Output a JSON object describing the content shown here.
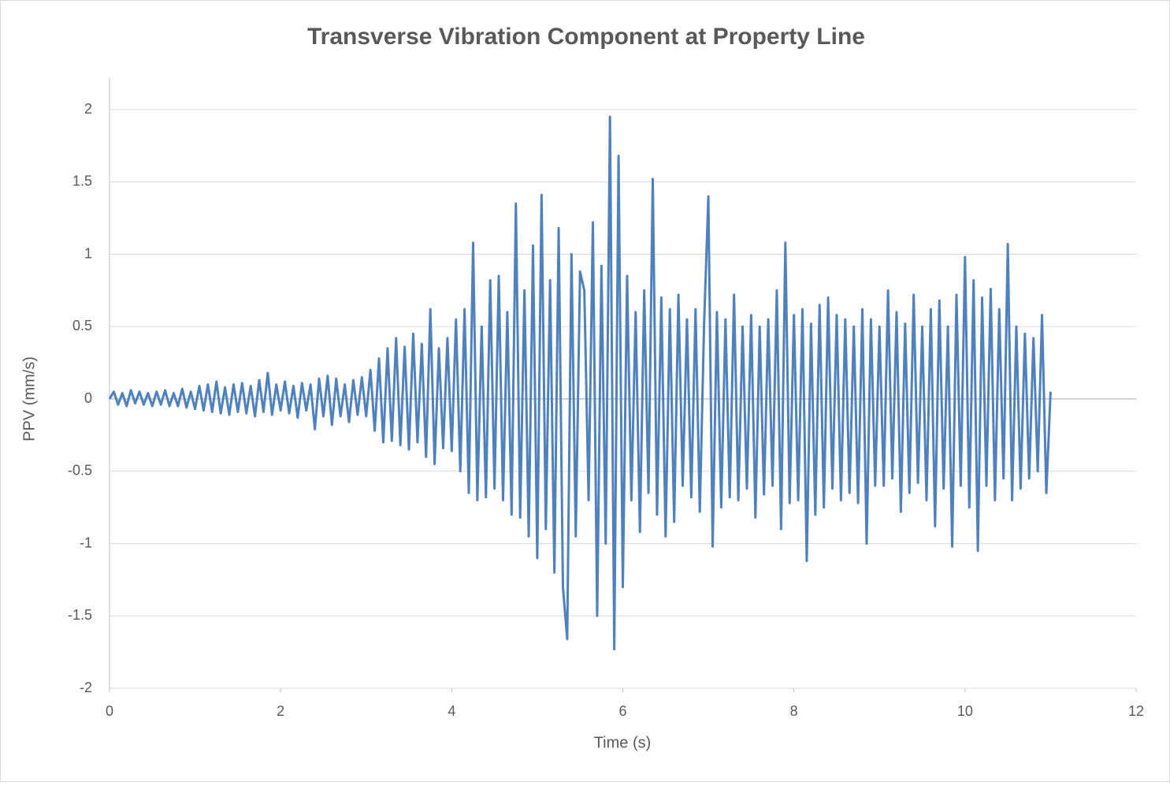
{
  "chart_data": {
    "type": "line",
    "title": "Transverse Vibration Component at Property Line",
    "x_label": "Time (s)",
    "y_label": "PPV (mm/s)",
    "color": "#4f81bd",
    "grid": true,
    "xlim": [
      0,
      12
    ],
    "xticks": [
      0,
      2,
      4,
      6,
      8,
      10,
      12
    ],
    "ylim": [
      -2,
      2
    ],
    "yticks": [
      -2,
      -1.5,
      -1,
      -0.5,
      0,
      0.5,
      1,
      1.5,
      2
    ],
    "x": [
      0,
      0.05,
      0.1,
      0.15,
      0.2,
      0.25,
      0.3,
      0.35,
      0.4,
      0.45,
      0.5,
      0.55,
      0.6,
      0.65,
      0.7,
      0.75,
      0.8,
      0.85,
      0.9,
      0.95,
      1,
      1.05,
      1.1,
      1.15,
      1.2,
      1.25,
      1.3,
      1.35,
      1.4,
      1.45,
      1.5,
      1.55,
      1.6,
      1.65,
      1.7,
      1.75,
      1.8,
      1.85,
      1.9,
      1.95,
      2,
      2.05,
      2.1,
      2.15,
      2.2,
      2.25,
      2.3,
      2.35,
      2.4,
      2.45,
      2.5,
      2.55,
      2.6,
      2.65,
      2.7,
      2.75,
      2.8,
      2.85,
      2.9,
      2.95,
      3,
      3.05,
      3.1,
      3.15,
      3.2,
      3.25,
      3.3,
      3.35,
      3.4,
      3.45,
      3.5,
      3.55,
      3.6,
      3.65,
      3.7,
      3.75,
      3.8,
      3.85,
      3.9,
      3.95,
      4,
      4.05,
      4.1,
      4.15,
      4.2,
      4.25,
      4.3,
      4.35,
      4.4,
      4.45,
      4.5,
      4.55,
      4.6,
      4.65,
      4.7,
      4.75,
      4.8,
      4.85,
      4.9,
      4.95,
      5,
      5.05,
      5.1,
      5.15,
      5.2,
      5.25,
      5.3,
      5.35,
      5.4,
      5.45,
      5.5,
      5.55,
      5.6,
      5.65,
      5.7,
      5.75,
      5.8,
      5.85,
      5.9,
      5.95,
      6,
      6.05,
      6.1,
      6.15,
      6.2,
      6.25,
      6.3,
      6.35,
      6.4,
      6.45,
      6.5,
      6.55,
      6.6,
      6.65,
      6.7,
      6.75,
      6.8,
      6.85,
      6.9,
      6.95,
      7,
      7.05,
      7.1,
      7.15,
      7.2,
      7.25,
      7.3,
      7.35,
      7.4,
      7.45,
      7.5,
      7.55,
      7.6,
      7.65,
      7.7,
      7.75,
      7.8,
      7.85,
      7.9,
      7.95,
      8,
      8.05,
      8.1,
      8.15,
      8.2,
      8.25,
      8.3,
      8.35,
      8.4,
      8.45,
      8.5,
      8.55,
      8.6,
      8.65,
      8.7,
      8.75,
      8.8,
      8.85,
      8.9,
      8.95,
      9,
      9.05,
      9.1,
      9.15,
      9.2,
      9.25,
      9.3,
      9.35,
      9.4,
      9.45,
      9.5,
      9.55,
      9.6,
      9.65,
      9.7,
      9.75,
      9.8,
      9.85,
      9.9,
      9.95,
      10,
      10.05,
      10.1,
      10.15,
      10.2,
      10.25,
      10.3,
      10.35,
      10.4,
      10.45,
      10.5,
      10.55,
      10.6,
      10.65,
      10.7,
      10.75,
      10.8,
      10.85,
      10.9,
      10.95,
      11
    ],
    "values": [
      0,
      0.05,
      -0.04,
      0.04,
      -0.05,
      0.06,
      -0.03,
      0.05,
      -0.04,
      0.04,
      -0.05,
      0.05,
      -0.04,
      0.06,
      -0.05,
      0.04,
      -0.05,
      0.07,
      -0.06,
      0.05,
      -0.07,
      0.09,
      -0.08,
      0.1,
      -0.09,
      0.12,
      -0.1,
      0.08,
      -0.11,
      0.1,
      -0.09,
      0.11,
      -0.1,
      0.09,
      -0.12,
      0.13,
      -0.09,
      0.18,
      -0.11,
      0.1,
      -0.08,
      0.12,
      -0.1,
      0.09,
      -0.13,
      0.11,
      -0.08,
      0.1,
      -0.21,
      0.14,
      -0.12,
      0.16,
      -0.18,
      0.14,
      -0.12,
      0.1,
      -0.16,
      0.13,
      -0.11,
      0.15,
      -0.12,
      0.2,
      -0.22,
      0.28,
      -0.3,
      0.35,
      -0.29,
      0.42,
      -0.32,
      0.36,
      -0.35,
      0.45,
      -0.3,
      0.38,
      -0.4,
      0.62,
      -0.45,
      0.35,
      -0.34,
      0.42,
      -0.36,
      0.55,
      -0.5,
      0.62,
      -0.65,
      1.08,
      -0.7,
      0.5,
      -0.68,
      0.82,
      -0.62,
      0.85,
      -0.7,
      0.6,
      -0.8,
      1.35,
      -0.82,
      0.75,
      -0.95,
      1.06,
      -1.1,
      1.41,
      -0.9,
      0.82,
      -1.2,
      1.18,
      -1.3,
      -1.66,
      1.0,
      -0.95,
      0.88,
      0.75,
      -0.7,
      1.22,
      -1.5,
      0.92,
      -1.0,
      1.95,
      -1.73,
      1.68,
      -1.3,
      0.85,
      -0.7,
      0.6,
      -0.92,
      0.75,
      -0.65,
      1.52,
      -0.8,
      0.7,
      -0.95,
      0.62,
      -0.85,
      0.72,
      -0.6,
      0.55,
      -0.68,
      0.62,
      -0.78,
      0.52,
      1.4,
      -1.02,
      0.6,
      -0.75,
      0.55,
      -0.68,
      0.72,
      -0.7,
      0.5,
      -0.62,
      0.58,
      -0.82,
      0.5,
      -0.66,
      0.55,
      -0.6,
      0.75,
      -0.9,
      1.08,
      -0.72,
      0.58,
      -0.7,
      0.62,
      -1.12,
      0.52,
      -0.8,
      0.65,
      -0.75,
      0.7,
      -0.62,
      0.58,
      -0.7,
      0.55,
      -0.65,
      0.5,
      -0.72,
      0.62,
      -1.0,
      0.55,
      -0.6,
      0.5,
      -0.6,
      0.75,
      -0.55,
      0.6,
      -0.78,
      0.52,
      -0.65,
      0.72,
      -0.58,
      0.5,
      -0.7,
      0.62,
      -0.88,
      0.68,
      -0.62,
      0.5,
      -1.02,
      0.72,
      -0.6,
      0.98,
      -0.75,
      0.82,
      -1.05,
      0.7,
      -0.6,
      0.76,
      -0.7,
      0.62,
      -0.55,
      1.07,
      -0.7,
      0.5,
      -0.62,
      0.45,
      -0.55,
      0.42,
      -0.5,
      0.58,
      -0.65,
      0.05
    ]
  }
}
